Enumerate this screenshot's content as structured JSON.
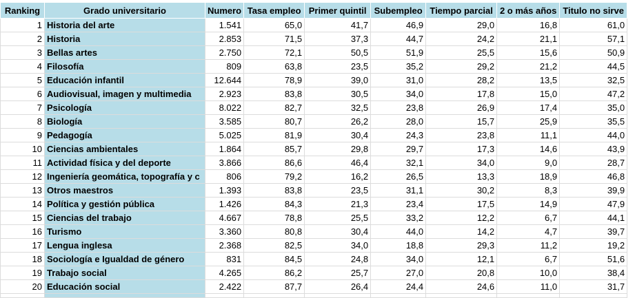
{
  "headers": [
    "Ranking",
    "Grado universitario",
    "Numero",
    "Tasa empleo",
    "Primer quintil",
    "Subempleo",
    "Tiempo parcial",
    "2 o más años",
    "Titulo no sirve"
  ],
  "rows": [
    [
      "1",
      "Historia del arte",
      "1.541",
      "65,0",
      "41,7",
      "46,9",
      "29,0",
      "16,8",
      "61,0"
    ],
    [
      "2",
      "Historia",
      "2.853",
      "71,5",
      "37,3",
      "44,7",
      "24,2",
      "21,1",
      "57,1"
    ],
    [
      "3",
      "Bellas artes",
      "2.750",
      "72,1",
      "50,5",
      "51,9",
      "25,5",
      "15,6",
      "50,9"
    ],
    [
      "4",
      "Filosofía",
      "809",
      "63,8",
      "23,5",
      "35,2",
      "29,2",
      "21,2",
      "44,5"
    ],
    [
      "5",
      "Educación infantil",
      "12.644",
      "78,9",
      "39,0",
      "31,0",
      "28,2",
      "13,5",
      "32,5"
    ],
    [
      "6",
      "Audiovisual, imagen y multimedia",
      "2.923",
      "83,8",
      "30,5",
      "34,0",
      "17,8",
      "15,0",
      "47,2"
    ],
    [
      "7",
      "Psicología",
      "8.022",
      "82,7",
      "32,5",
      "23,8",
      "26,9",
      "17,4",
      "35,0"
    ],
    [
      "8",
      "Biología",
      "3.585",
      "80,7",
      "26,2",
      "28,0",
      "15,7",
      "25,9",
      "35,5"
    ],
    [
      "9",
      "Pedagogía",
      "5.025",
      "81,9",
      "30,4",
      "24,3",
      "23,8",
      "11,1",
      "44,0"
    ],
    [
      "10",
      "Ciencias ambientales",
      "1.864",
      "85,7",
      "29,8",
      "29,7",
      "17,3",
      "14,6",
      "43,9"
    ],
    [
      "11",
      "Actividad física y del deporte",
      "3.866",
      "86,6",
      "46,4",
      "32,1",
      "34,0",
      "9,0",
      "28,7"
    ],
    [
      "12",
      "Ingeniería geomática, topografía y c",
      "806",
      "79,2",
      "16,2",
      "26,5",
      "13,3",
      "18,9",
      "46,8"
    ],
    [
      "13",
      "Otros maestros",
      "1.393",
      "83,8",
      "23,5",
      "31,1",
      "30,2",
      "8,3",
      "39,9"
    ],
    [
      "14",
      "Política y gestión pública",
      "1.426",
      "84,3",
      "21,3",
      "23,4",
      "17,5",
      "14,9",
      "47,9"
    ],
    [
      "15",
      "Ciencias del trabajo",
      "4.667",
      "78,8",
      "25,5",
      "33,2",
      "12,2",
      "6,7",
      "44,1"
    ],
    [
      "16",
      "Turismo",
      "3.360",
      "80,8",
      "30,4",
      "44,0",
      "14,2",
      "4,7",
      "39,7"
    ],
    [
      "17",
      "Lengua inglesa",
      "2.368",
      "82,5",
      "34,0",
      "18,8",
      "29,3",
      "11,2",
      "19,2"
    ],
    [
      "18",
      "Sociología e Igualdad de género",
      "831",
      "84,5",
      "24,8",
      "34,0",
      "12,1",
      "6,7",
      "51,6"
    ],
    [
      "19",
      "Trabajo social",
      "4.265",
      "86,2",
      "25,7",
      "27,0",
      "20,8",
      "10,0",
      "38,4"
    ],
    [
      "20",
      "Educación social",
      "2.422",
      "87,7",
      "26,4",
      "24,4",
      "24,6",
      "11,0",
      "31,7"
    ]
  ],
  "colors": {
    "header_bg": "#b7dde8",
    "grado_bg": "#b7dde8",
    "cell_bg": "#ffffff",
    "gridline": "#dcdcdc"
  }
}
